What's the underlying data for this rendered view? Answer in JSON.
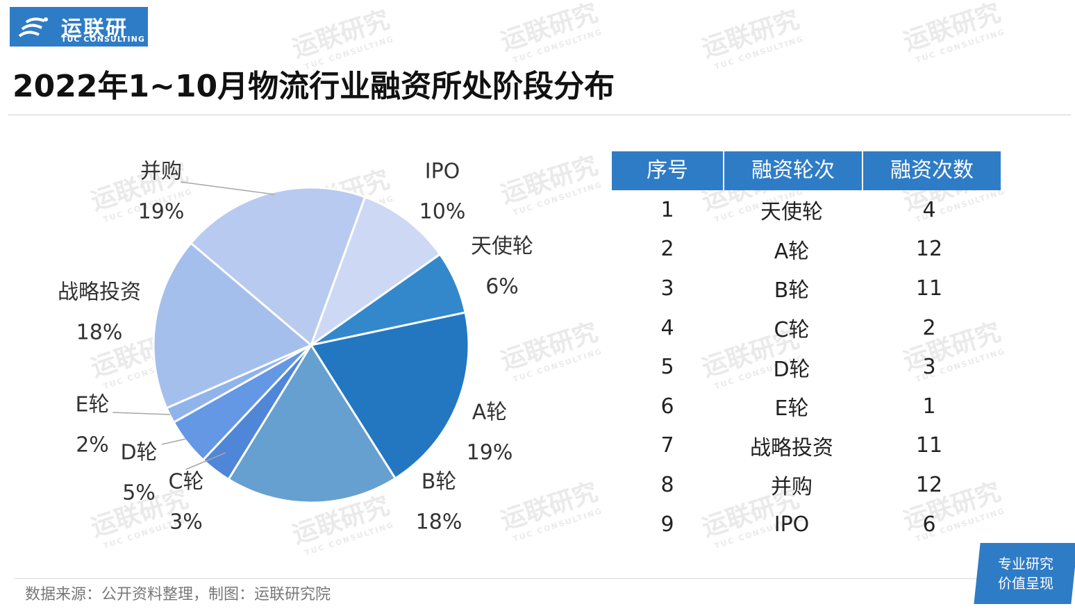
{
  "logo": {
    "cn": "运联研究",
    "en": "TUC CONSULTING"
  },
  "title": "2022年1~10月物流行业融资所处阶段分布",
  "source": "数据来源：公开资料整理，制图：运联研究院",
  "badge": {
    "line1": "专业研究",
    "line2": "价值呈现"
  },
  "watermark": {
    "cn": "运联研究",
    "en": "TUC CONSULTING"
  },
  "table": {
    "headers": [
      "序号",
      "融资轮次",
      "融资次数"
    ],
    "rows": [
      [
        "1",
        "天使轮",
        "4"
      ],
      [
        "2",
        "A轮",
        "12"
      ],
      [
        "3",
        "B轮",
        "11"
      ],
      [
        "4",
        "C轮",
        "2"
      ],
      [
        "5",
        "D轮",
        "3"
      ],
      [
        "6",
        "E轮",
        "1"
      ],
      [
        "7",
        "战略投资",
        "11"
      ],
      [
        "8",
        "并购",
        "12"
      ],
      [
        "9",
        "IPO",
        "6"
      ]
    ]
  },
  "chart_data": {
    "type": "pie",
    "title": "2022年1~10月物流行业融资所处阶段分布",
    "start_at": "IPO, clockwise from upper right",
    "slices": [
      {
        "label": "IPO",
        "value": 6,
        "percent": "10%",
        "color": "#cdd9f4"
      },
      {
        "label": "天使轮",
        "value": 4,
        "percent": "6%",
        "color": "#3388cc"
      },
      {
        "label": "A轮",
        "value": 12,
        "percent": "19%",
        "color": "#2277c0"
      },
      {
        "label": "B轮",
        "value": 11,
        "percent": "18%",
        "color": "#66a0d0"
      },
      {
        "label": "C轮",
        "value": 2,
        "percent": "3%",
        "color": "#4f86d8"
      },
      {
        "label": "D轮",
        "value": 3,
        "percent": "5%",
        "color": "#6497e4"
      },
      {
        "label": "E轮",
        "value": 1,
        "percent": "2%",
        "color": "#90b3ea"
      },
      {
        "label": "战略投资",
        "value": 11,
        "percent": "18%",
        "color": "#a5bfec"
      },
      {
        "label": "并购",
        "value": 12,
        "percent": "19%",
        "color": "#b8caf0"
      }
    ]
  }
}
